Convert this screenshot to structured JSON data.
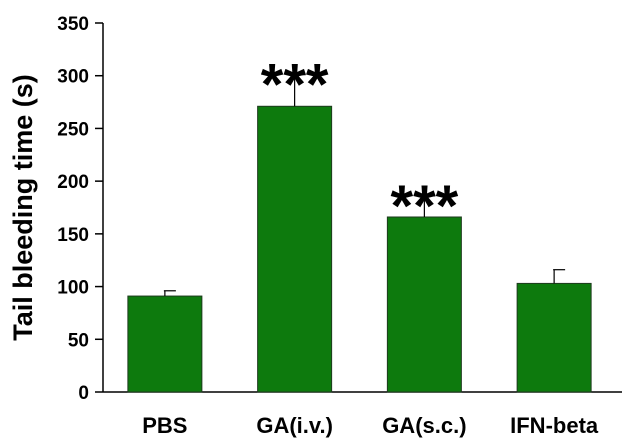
{
  "chart_data": {
    "type": "bar",
    "title": "",
    "xlabel": "",
    "ylabel": "Tail bleeding time (s)",
    "ylim": [
      0,
      350
    ],
    "yticks": [
      0,
      50,
      100,
      150,
      200,
      250,
      300,
      350
    ],
    "categories": [
      "PBS",
      "GA(i.v.)",
      "GA(s.c.)",
      "IFN-beta"
    ],
    "values": [
      91,
      271,
      166,
      103
    ],
    "errors": [
      5,
      30,
      20,
      13
    ],
    "annotations": [
      "",
      "***",
      "***",
      ""
    ],
    "grid": false,
    "legend": "none",
    "bar_color": "#0d7a0d",
    "edge_color": "#1e3a1e"
  }
}
